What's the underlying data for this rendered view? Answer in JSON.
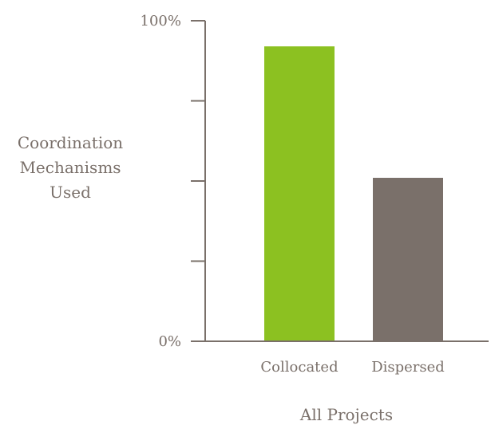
{
  "chart_data": {
    "type": "bar",
    "categories": [
      "Collocated",
      "Dispersed"
    ],
    "values": [
      92,
      51
    ],
    "ylim": [
      0,
      100
    ],
    "yticks": [
      0,
      25,
      50,
      75,
      100
    ],
    "ytick_labels": {
      "0": "0%",
      "100": "100%"
    },
    "xlabel": "All Projects",
    "ylabel_lines": [
      "Coordination",
      "Mechanisms",
      "Used"
    ],
    "colors": [
      "#8cc121",
      "#7a706a"
    ],
    "axis_color": "#7a706a",
    "grid": false,
    "legend": "none"
  }
}
